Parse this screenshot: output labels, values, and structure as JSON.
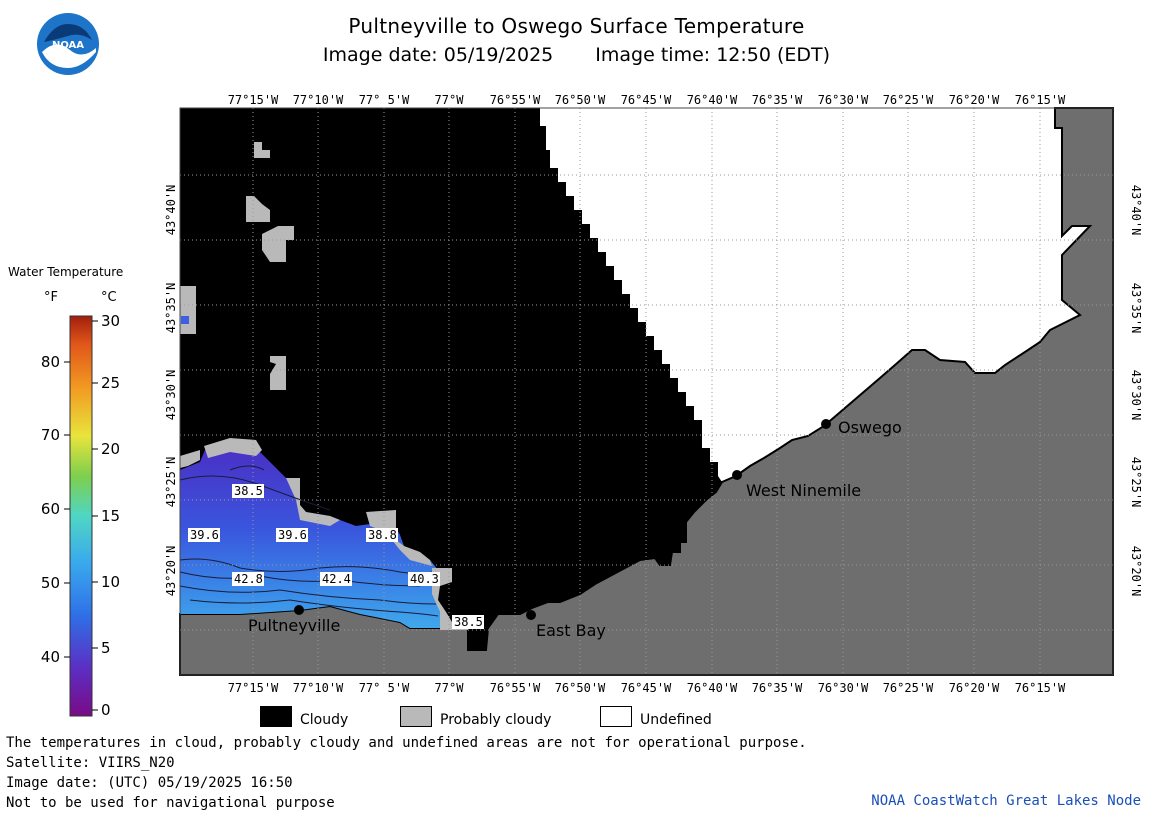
{
  "header": {
    "title": "Pultneyville to Oswego Surface Temperature",
    "image_date": "Image date: 05/19/2025",
    "image_time": "Image time: 12:50 (EDT)",
    "logo_text": "NOAA"
  },
  "map": {
    "lon_labels": [
      "77°15'W",
      "77°10'W",
      "77° 5'W",
      "77°W",
      "76°55'W",
      "76°50'W",
      "76°45'W",
      "76°40'W",
      "76°35'W",
      "76°30'W",
      "76°25'W",
      "76°20'W",
      "76°15'W"
    ],
    "lat_labels": [
      "43°40'N",
      "43°35'N",
      "43°30'N",
      "43°25'N",
      "43°20'N"
    ],
    "places": [
      {
        "name": "Oswego"
      },
      {
        "name": "West Ninemile"
      },
      {
        "name": "Pultneyville"
      },
      {
        "name": "East Bay"
      }
    ],
    "contour_labels": [
      "38.5",
      "39.6",
      "39.6",
      "38.8",
      "42.8",
      "42.4",
      "40.3",
      "38.5"
    ],
    "colors": {
      "land": "#6e6e6e",
      "cloudy": "#000000",
      "probably_cloudy": "#b9b9b9",
      "undefined": "#ffffff",
      "water_warm": "#3f8fe8",
      "water_cold": "#4a2fc4",
      "grid": "#9a9a9a"
    }
  },
  "colorbar": {
    "title": "Water Temperature",
    "unit_f": "°F",
    "unit_c": "°C",
    "f_ticks": [
      "80",
      "70",
      "60",
      "50",
      "40"
    ],
    "c_ticks": [
      "30",
      "25",
      "20",
      "15",
      "10",
      "5",
      "0"
    ]
  },
  "key": {
    "cloudy": "Cloudy",
    "probably_cloudy": "Probably cloudy",
    "undefined": "Undefined"
  },
  "footer": {
    "line1": "The temperatures in cloud, probably cloudy and undefined areas are not for operational purpose.",
    "line2": "Satellite: VIIRS_N20",
    "line3": "Image date: (UTC) 05/19/2025  16:50",
    "line4": "Not to be used for navigational purpose",
    "credit": "NOAA CoastWatch Great Lakes Node"
  }
}
